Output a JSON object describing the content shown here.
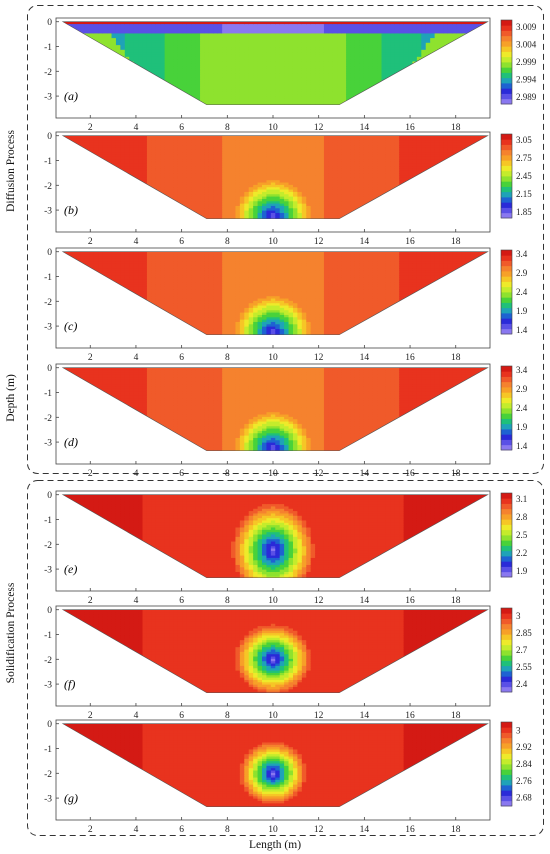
{
  "figure": {
    "y_axis_label": "Depth (m)",
    "x_axis_label": "Length (m)",
    "group_labels": [
      "Diffusion Process",
      "Solidification Process"
    ]
  },
  "chart_data": [
    {
      "type": "heatmap",
      "panel": "(a)",
      "group": "Diffusion Process",
      "x": [
        2,
        4,
        6,
        8,
        10,
        12,
        14,
        16,
        18
      ],
      "xlim": [
        0.5,
        19.5
      ],
      "y_ticks": [
        0,
        -1,
        -2,
        -3
      ],
      "ylim": [
        -3.4,
        0.15
      ],
      "colorbar_ticks": [
        3.009,
        3.004,
        2.999,
        2.994,
        2.989
      ],
      "colorbar_range": [
        2.987,
        3.011
      ],
      "field": "uniform",
      "value_range": [
        2.989,
        3.009
      ]
    },
    {
      "type": "heatmap",
      "panel": "(b)",
      "group": "Diffusion Process",
      "x": [
        2,
        4,
        6,
        8,
        10,
        12,
        14,
        16,
        18
      ],
      "xlim": [
        0.5,
        19.5
      ],
      "y_ticks": [
        0,
        -1,
        -2,
        -3
      ],
      "ylim": [
        -3.4,
        0.15
      ],
      "colorbar_ticks": [
        3.05,
        2.75,
        2.45,
        2.15,
        1.85
      ],
      "colorbar_range": [
        1.75,
        3.15
      ],
      "field": "arch",
      "value_range": [
        1.85,
        3.1
      ]
    },
    {
      "type": "heatmap",
      "panel": "(c)",
      "group": "Diffusion Process",
      "x": [
        2,
        4,
        6,
        8,
        10,
        12,
        14,
        16,
        18
      ],
      "xlim": [
        0.5,
        19.5
      ],
      "y_ticks": [
        0,
        -1,
        -2,
        -3
      ],
      "ylim": [
        -3.4,
        0.15
      ],
      "colorbar_ticks": [
        3.4,
        2.9,
        2.4,
        1.9,
        1.4
      ],
      "colorbar_range": [
        1.3,
        3.5
      ],
      "field": "arch",
      "value_range": [
        1.4,
        3.45
      ]
    },
    {
      "type": "heatmap",
      "panel": "(d)",
      "group": "Diffusion Process",
      "x": [
        2,
        4,
        6,
        8,
        10,
        12,
        14,
        16,
        18
      ],
      "xlim": [
        0.5,
        19.5
      ],
      "y_ticks": [
        0,
        -1,
        -2,
        -3
      ],
      "ylim": [
        -3.4,
        0.15
      ],
      "colorbar_ticks": [
        3.4,
        2.9,
        2.4,
        1.9,
        1.4
      ],
      "colorbar_range": [
        1.3,
        3.5
      ],
      "field": "arch",
      "value_range": [
        1.4,
        3.45
      ]
    },
    {
      "type": "heatmap",
      "panel": "(e)",
      "group": "Solidification Process",
      "x": [
        2,
        4,
        6,
        8,
        10,
        12,
        14,
        16,
        18
      ],
      "xlim": [
        0.5,
        19.5
      ],
      "y_ticks": [
        0,
        -1,
        -2,
        -3
      ],
      "ylim": [
        -3.4,
        0.15
      ],
      "colorbar_ticks": [
        3.1,
        2.8,
        2.5,
        2.2,
        1.9
      ],
      "colorbar_range": [
        1.8,
        3.2
      ],
      "field": "core_deep",
      "value_range": [
        1.9,
        3.15
      ]
    },
    {
      "type": "heatmap",
      "panel": "(f)",
      "group": "Solidification Process",
      "x": [
        2,
        4,
        6,
        8,
        10,
        12,
        14,
        16,
        18
      ],
      "xlim": [
        0.5,
        19.5
      ],
      "y_ticks": [
        0,
        -1,
        -2,
        -3
      ],
      "ylim": [
        -3.4,
        0.15
      ],
      "colorbar_ticks": [
        3,
        2.85,
        2.7,
        2.55,
        2.4
      ],
      "colorbar_range": [
        2.33,
        3.07
      ],
      "field": "core",
      "value_range": [
        2.4,
        3.07
      ]
    },
    {
      "type": "heatmap",
      "panel": "(g)",
      "group": "Solidification Process",
      "x": [
        2,
        4,
        6,
        8,
        10,
        12,
        14,
        16,
        18
      ],
      "xlim": [
        0.5,
        19.5
      ],
      "y_ticks": [
        0,
        -1,
        -2,
        -3
      ],
      "ylim": [
        -3.4,
        0.15
      ],
      "colorbar_ticks": [
        3,
        2.92,
        2.84,
        2.76,
        2.68
      ],
      "colorbar_range": [
        2.64,
        3.04
      ],
      "field": "core_small",
      "value_range": [
        2.68,
        3.04
      ]
    }
  ]
}
